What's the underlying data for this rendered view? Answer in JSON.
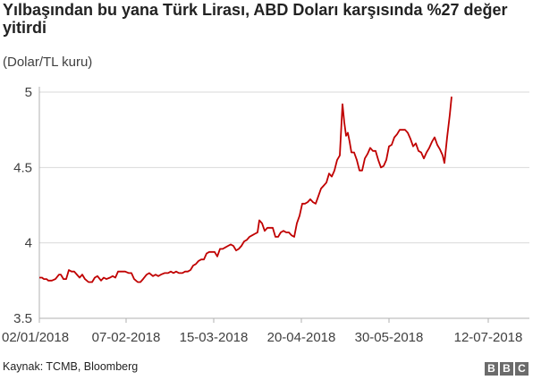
{
  "title": "Yılbaşından bu yana Türk Lirası, ABD Doları karşısında %27 değer yitirdi",
  "subtitle": "(Dolar/TL kuru)",
  "source": "Kaynak: TCMB, Bloomberg",
  "logo": {
    "letters": [
      "B",
      "B",
      "C"
    ],
    "color": "#6b6b6b"
  },
  "colors": {
    "line": "#c00000",
    "grid": "#d9d9d9",
    "axis": "#b0b0b0"
  },
  "chart_data": {
    "type": "line",
    "x_tick_labels": [
      "02/01/2018",
      "07-02-2018",
      "15-03-2018",
      "20-04-2018",
      "30-05-2018",
      "12-07-2018"
    ],
    "y_ticks": [
      3.5,
      4,
      4.5,
      5
    ],
    "ylim": [
      3.5,
      5
    ],
    "grid": true,
    "points": [
      [
        0,
        3.77
      ],
      [
        3,
        3.77
      ],
      [
        5,
        3.76
      ],
      [
        8,
        3.76
      ],
      [
        10,
        3.75
      ],
      [
        14,
        3.75
      ],
      [
        18,
        3.76
      ],
      [
        22,
        3.79
      ],
      [
        24,
        3.79
      ],
      [
        27,
        3.76
      ],
      [
        30,
        3.76
      ],
      [
        33,
        3.82
      ],
      [
        36,
        3.81
      ],
      [
        39,
        3.81
      ],
      [
        42,
        3.79
      ],
      [
        45,
        3.77
      ],
      [
        48,
        3.79
      ],
      [
        51,
        3.76
      ],
      [
        55,
        3.74
      ],
      [
        59,
        3.74
      ],
      [
        62,
        3.77
      ],
      [
        65,
        3.78
      ],
      [
        69,
        3.75
      ],
      [
        72,
        3.77
      ],
      [
        75,
        3.76
      ],
      [
        79,
        3.77
      ],
      [
        82,
        3.78
      ],
      [
        85,
        3.77
      ],
      [
        88,
        3.81
      ],
      [
        92,
        3.81
      ],
      [
        96,
        3.81
      ],
      [
        100,
        3.8
      ],
      [
        103,
        3.8
      ],
      [
        106,
        3.76
      ],
      [
        110,
        3.74
      ],
      [
        113,
        3.74
      ],
      [
        116,
        3.76
      ],
      [
        120,
        3.79
      ],
      [
        123,
        3.8
      ],
      [
        127,
        3.78
      ],
      [
        130,
        3.79
      ],
      [
        133,
        3.78
      ],
      [
        136,
        3.79
      ],
      [
        140,
        3.8
      ],
      [
        144,
        3.8
      ],
      [
        147,
        3.81
      ],
      [
        150,
        3.8
      ],
      [
        153,
        3.81
      ],
      [
        156,
        3.8
      ],
      [
        160,
        3.8
      ],
      [
        163,
        3.81
      ],
      [
        166,
        3.81
      ],
      [
        169,
        3.82
      ],
      [
        172,
        3.85
      ],
      [
        175,
        3.86
      ],
      [
        178,
        3.88
      ],
      [
        181,
        3.89
      ],
      [
        184,
        3.89
      ],
      [
        187,
        3.93
      ],
      [
        190,
        3.94
      ],
      [
        193,
        3.94
      ],
      [
        196,
        3.94
      ],
      [
        199,
        3.91
      ],
      [
        202,
        3.96
      ],
      [
        205,
        3.96
      ],
      [
        208,
        3.97
      ],
      [
        211,
        3.98
      ],
      [
        214,
        3.99
      ],
      [
        217,
        3.98
      ],
      [
        220,
        3.95
      ],
      [
        223,
        3.96
      ],
      [
        226,
        3.98
      ],
      [
        229,
        4.01
      ],
      [
        232,
        4.02
      ],
      [
        235,
        4.04
      ],
      [
        238,
        4.05
      ],
      [
        241,
        4.06
      ],
      [
        244,
        4.07
      ],
      [
        246,
        4.15
      ],
      [
        249,
        4.13
      ],
      [
        252,
        4.08
      ],
      [
        255,
        4.1
      ],
      [
        258,
        4.1
      ],
      [
        261,
        4.1
      ],
      [
        264,
        4.04
      ],
      [
        267,
        4.04
      ],
      [
        270,
        4.07
      ],
      [
        273,
        4.08
      ],
      [
        276,
        4.07
      ],
      [
        279,
        4.07
      ],
      [
        282,
        4.05
      ],
      [
        285,
        4.04
      ],
      [
        288,
        4.13
      ],
      [
        291,
        4.18
      ],
      [
        294,
        4.26
      ],
      [
        297,
        4.26
      ],
      [
        300,
        4.27
      ],
      [
        303,
        4.29
      ],
      [
        306,
        4.27
      ],
      [
        309,
        4.26
      ],
      [
        312,
        4.31
      ],
      [
        315,
        4.36
      ],
      [
        318,
        4.38
      ],
      [
        321,
        4.4
      ],
      [
        324,
        4.46
      ],
      [
        327,
        4.44
      ],
      [
        330,
        4.48
      ],
      [
        333,
        4.55
      ],
      [
        336,
        4.58
      ],
      [
        339,
        4.92
      ],
      [
        341,
        4.8
      ],
      [
        343,
        4.71
      ],
      [
        345,
        4.73
      ],
      [
        347,
        4.67
      ],
      [
        349,
        4.6
      ],
      [
        352,
        4.6
      ],
      [
        355,
        4.55
      ],
      [
        358,
        4.48
      ],
      [
        361,
        4.48
      ],
      [
        364,
        4.56
      ],
      [
        367,
        4.59
      ],
      [
        370,
        4.63
      ],
      [
        373,
        4.61
      ],
      [
        376,
        4.61
      ],
      [
        379,
        4.55
      ],
      [
        382,
        4.5
      ],
      [
        385,
        4.51
      ],
      [
        388,
        4.55
      ],
      [
        391,
        4.64
      ],
      [
        394,
        4.65
      ],
      [
        397,
        4.7
      ],
      [
        400,
        4.72
      ],
      [
        403,
        4.75
      ],
      [
        406,
        4.75
      ],
      [
        409,
        4.75
      ],
      [
        412,
        4.73
      ],
      [
        415,
        4.69
      ],
      [
        418,
        4.64
      ],
      [
        421,
        4.66
      ],
      [
        424,
        4.61
      ],
      [
        427,
        4.6
      ],
      [
        430,
        4.56
      ],
      [
        433,
        4.6
      ],
      [
        436,
        4.63
      ],
      [
        439,
        4.67
      ],
      [
        442,
        4.7
      ],
      [
        445,
        4.65
      ],
      [
        448,
        4.62
      ],
      [
        451,
        4.58
      ],
      [
        453,
        4.53
      ],
      [
        456,
        4.7
      ],
      [
        459,
        4.85
      ],
      [
        461,
        4.97
      ]
    ]
  }
}
